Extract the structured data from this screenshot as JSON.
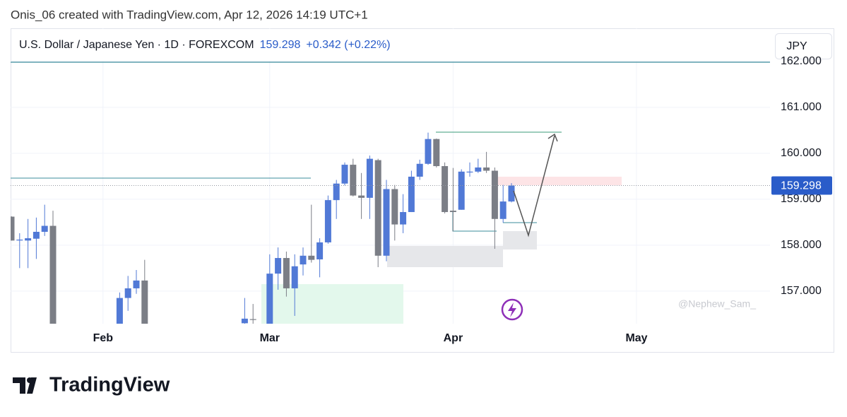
{
  "header": "Onis_06 created with TradingView.com, Apr 12, 2026 14:19 UTC+1",
  "brand": "TradingView",
  "chart_data": {
    "type": "candlestick",
    "title": "U.S. Dollar / Japanese Yen · 1D · FOREXCOM",
    "last_price": 159.298,
    "change": "+0.342 (+0.22%)",
    "currency": "JPY",
    "watermark": "@Nephew_Sam_",
    "up_color": "#5179d6",
    "down_color": "#7b7e86",
    "grid": true,
    "ylim": [
      156.29,
      162.72
    ],
    "yticks": [
      {
        "value": 157,
        "label": "157.000"
      },
      {
        "value": 158,
        "label": "158.000"
      },
      {
        "value": 159,
        "label": "159.000"
      },
      {
        "value": 160,
        "label": "160.000"
      },
      {
        "value": 161,
        "label": "161.000"
      },
      {
        "value": 162,
        "label": "162.000"
      }
    ],
    "categories": [
      null,
      null,
      null,
      null,
      null,
      null,
      null,
      null,
      null,
      null,
      null,
      "Feb",
      null,
      null,
      null,
      null,
      null,
      null,
      null,
      null,
      null,
      null,
      null,
      null,
      null,
      null,
      null,
      null,
      null,
      null,
      null,
      "Mar",
      null,
      null,
      null,
      null,
      null,
      null,
      null,
      null,
      null,
      null,
      null,
      null,
      null,
      null,
      null,
      null,
      null,
      null,
      null,
      null,
      null,
      "Apr",
      null,
      null,
      null,
      null,
      null,
      null,
      null,
      null,
      null,
      null,
      null,
      null,
      null,
      null,
      null,
      null,
      null,
      null,
      null,
      null,
      null,
      "May"
    ],
    "open": [
      158.62,
      158.12,
      158.1,
      158.14,
      158.29,
      158.42,
      null,
      null,
      null,
      null,
      null,
      null,
      null,
      156.2,
      156.85,
      157.06,
      157.23,
      null,
      null,
      null,
      null,
      null,
      null,
      null,
      null,
      null,
      null,
      null,
      156.3,
      156.39,
      null,
      156.25,
      157.38,
      157.72,
      157.06,
      157.58,
      157.77,
      157.69,
      158.06,
      158.98,
      159.34,
      159.75,
      159.08,
      159.03,
      159.85,
      157.77,
      159.22,
      158.45,
      158.72,
      159.49,
      159.77,
      160.31,
      159.72,
      158.75,
      158.77,
      159.6,
      159.6,
      159.69,
      159.62,
      158.57,
      158.95,
      null,
      null,
      null,
      null,
      null,
      null,
      null,
      null,
      null,
      null,
      null,
      null,
      null,
      null,
      null
    ],
    "high": [
      158.63,
      158.26,
      158.57,
      158.6,
      158.88,
      158.75,
      null,
      null,
      null,
      null,
      null,
      null,
      null,
      156.97,
      157.33,
      157.46,
      157.68,
      null,
      null,
      null,
      null,
      null,
      null,
      null,
      null,
      null,
      null,
      null,
      156.85,
      156.72,
      null,
      157.8,
      157.95,
      157.86,
      157.8,
      157.95,
      158.88,
      158.15,
      159.08,
      159.42,
      159.8,
      159.88,
      159.57,
      159.95,
      159.88,
      159.42,
      159.31,
      159.11,
      159.62,
      159.86,
      160.45,
      160.32,
      159.8,
      159.68,
      159.65,
      159.8,
      159.88,
      160.03,
      159.69,
      159.31,
      159.35,
      null,
      null,
      null,
      null,
      null,
      null,
      null,
      null,
      null,
      null,
      null,
      null,
      null,
      null,
      null
    ],
    "low": [
      158.1,
      157.5,
      157.5,
      157.7,
      158.2,
      156.0,
      null,
      null,
      null,
      null,
      null,
      null,
      null,
      156.1,
      156.57,
      156.94,
      156.1,
      null,
      null,
      null,
      null,
      null,
      null,
      null,
      null,
      null,
      null,
      null,
      156.2,
      156.2,
      null,
      156.2,
      157.03,
      156.88,
      156.46,
      157.34,
      157.62,
      157.3,
      158.03,
      158.57,
      159.3,
      159.06,
      158.57,
      158.57,
      157.52,
      157.65,
      158.1,
      158.26,
      158.72,
      159.42,
      159.75,
      159.69,
      158.69,
      158.3,
      158.77,
      159.49,
      159.57,
      159.57,
      157.92,
      158.49,
      158.93,
      null,
      null,
      null,
      null,
      null,
      null,
      null,
      null,
      null,
      null,
      null,
      null,
      null,
      null,
      null
    ],
    "close": [
      158.1,
      158.12,
      158.15,
      158.29,
      158.42,
      156.1,
      null,
      null,
      null,
      null,
      null,
      null,
      null,
      156.85,
      157.06,
      157.23,
      156.2,
      null,
      null,
      null,
      null,
      null,
      null,
      null,
      null,
      null,
      null,
      null,
      156.4,
      156.38,
      null,
      157.38,
      157.72,
      157.06,
      157.54,
      157.77,
      157.68,
      158.06,
      158.98,
      159.34,
      159.75,
      159.08,
      159.03,
      159.88,
      157.77,
      159.22,
      158.45,
      158.72,
      159.49,
      159.77,
      160.31,
      159.72,
      158.72,
      158.72,
      159.6,
      159.6,
      159.69,
      159.62,
      158.57,
      158.95,
      159.298,
      null,
      null,
      null,
      null,
      null,
      null,
      null,
      null,
      null,
      null,
      null,
      null,
      null,
      null,
      null
    ]
  }
}
